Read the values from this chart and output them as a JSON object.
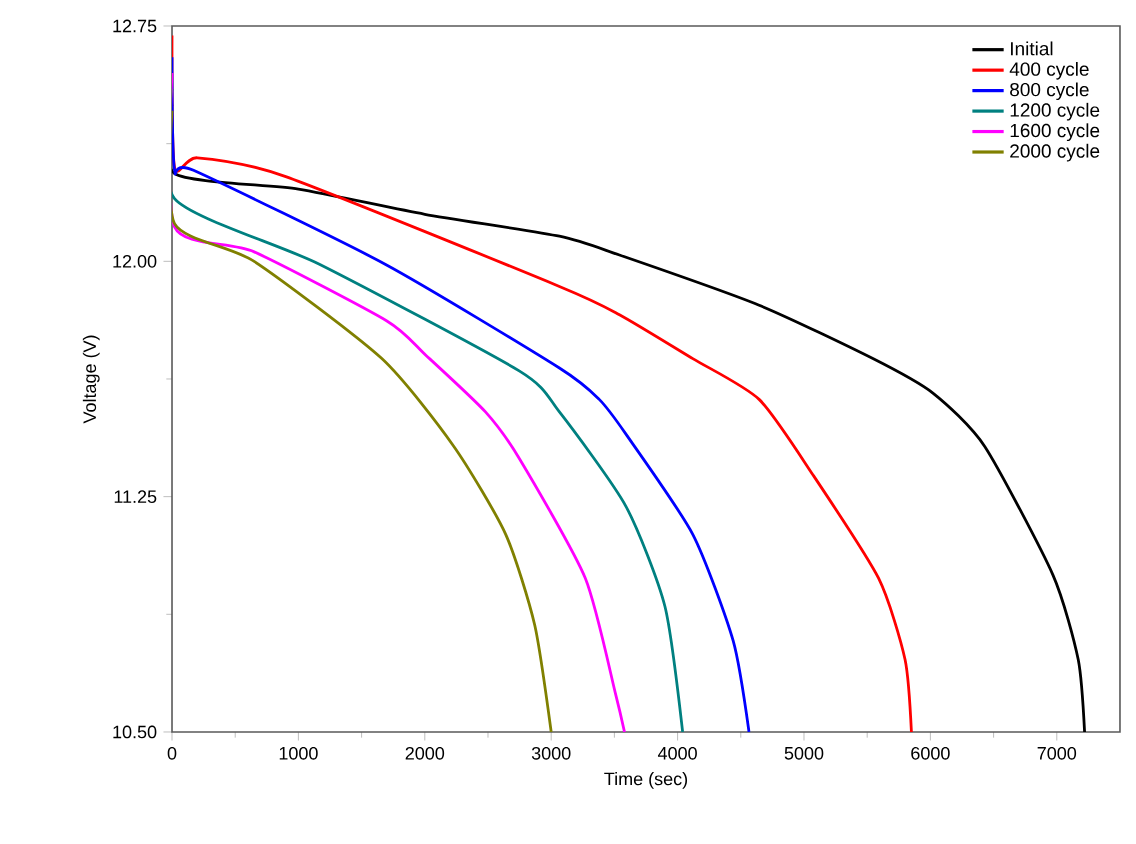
{
  "chart_data": {
    "type": "line",
    "xlabel": "Time (sec)",
    "ylabel": "Voltage (V)",
    "xlim": [
      0,
      7500
    ],
    "ylim": [
      10.5,
      12.75
    ],
    "xticks": [
      0,
      1000,
      2000,
      3000,
      4000,
      5000,
      6000,
      7000
    ],
    "yticks": [
      {
        "value": 10.5,
        "label": "10.50"
      },
      {
        "value": 11.25,
        "label": "11.25"
      },
      {
        "value": 12.0,
        "label": "12.00"
      },
      {
        "value": 12.75,
        "label": "12.75"
      }
    ],
    "grid": false,
    "legend": "top right",
    "marker": "none",
    "line_style": "solid",
    "series": [
      {
        "name": "Initial",
        "color": "#000000",
        "x": [
          0,
          20,
          1000,
          2000,
          3065,
          3540,
          4645,
          5545,
          6020,
          6430,
          6970,
          7170,
          7220
        ],
        "values": [
          12.5,
          12.28,
          12.23,
          12.15,
          12.08,
          12.02,
          11.86,
          11.69,
          11.58,
          11.41,
          11.0,
          10.73,
          10.5
        ]
      },
      {
        "name": "400 cycle",
        "color": "#ff0000",
        "x": [
          0,
          20,
          200,
          900,
          3065,
          3540,
          4120,
          4645,
          5070,
          5590,
          5800,
          5850
        ],
        "values": [
          12.72,
          12.3,
          12.33,
          12.27,
          11.92,
          11.83,
          11.69,
          11.56,
          11.32,
          10.99,
          10.73,
          10.5
        ]
      },
      {
        "name": "800 cycle",
        "color": "#0000ff",
        "x": [
          0,
          20,
          170,
          1690,
          3065,
          3380,
          3590,
          4120,
          4440,
          4565
        ],
        "values": [
          12.65,
          12.29,
          12.29,
          11.99,
          11.66,
          11.56,
          11.45,
          11.13,
          10.79,
          10.5
        ]
      },
      {
        "name": "1200 cycle",
        "color": "#008080",
        "x": [
          0,
          20,
          1170,
          2750,
          3065,
          3590,
          3900,
          4040
        ],
        "values": [
          12.55,
          12.2,
          11.99,
          11.65,
          11.52,
          11.22,
          10.9,
          10.5
        ]
      },
      {
        "name": "1600 cycle",
        "color": "#ff00ff",
        "x": [
          0,
          20,
          650,
          1700,
          2010,
          2480,
          2750,
          3270,
          3510,
          3580
        ],
        "values": [
          12.6,
          12.11,
          12.03,
          11.81,
          11.7,
          11.52,
          11.37,
          10.99,
          10.62,
          10.5
        ]
      },
      {
        "name": "2000 cycle",
        "color": "#808000",
        "x": [
          0,
          20,
          650,
          1660,
          2230,
          2640,
          2870,
          3000
        ],
        "values": [
          12.48,
          12.12,
          12.0,
          11.69,
          11.41,
          11.13,
          10.84,
          10.5
        ]
      }
    ]
  }
}
